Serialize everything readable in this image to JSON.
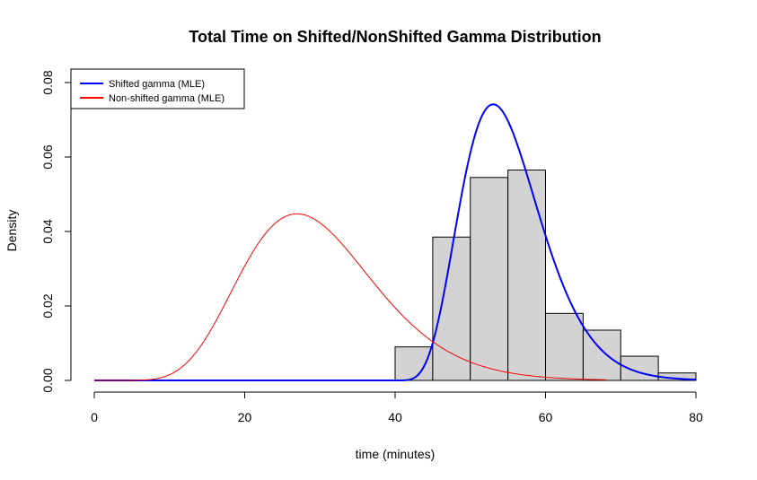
{
  "chart_data": {
    "type": "histogram",
    "title": "Total Time on Shifted/NonShifted Gamma Distribution",
    "xlabel": "time (minutes)",
    "ylabel": "Density",
    "xlim": [
      0,
      80
    ],
    "ylim": [
      0,
      0.08
    ],
    "x_ticks": [
      "0",
      "20",
      "40",
      "60",
      "80"
    ],
    "y_ticks": [
      "0.00",
      "0.02",
      "0.04",
      "0.06",
      "0.08"
    ],
    "grid": false,
    "legend_position": "top-left",
    "histogram": {
      "bin_edges": [
        40,
        45,
        50,
        55,
        60,
        65,
        70,
        75,
        80
      ],
      "densities": [
        0.009,
        0.0385,
        0.0545,
        0.0565,
        0.018,
        0.0135,
        0.0065,
        0.002
      ],
      "fill": "#d3d3d3",
      "border": "#000000"
    },
    "series": [
      {
        "name": "Shifted gamma (MLE)",
        "color": "#0000ff",
        "curve": "shifted-gamma",
        "shift": 39.5,
        "shape": 7.5,
        "rate": 0.48,
        "x_range": [
          0,
          80
        ]
      },
      {
        "name": "Non-shifted gamma (MLE)",
        "color": "#ff0000",
        "curve": "gamma",
        "shape": 10.3,
        "rate": 0.345,
        "x_range": [
          0,
          68
        ]
      }
    ]
  }
}
